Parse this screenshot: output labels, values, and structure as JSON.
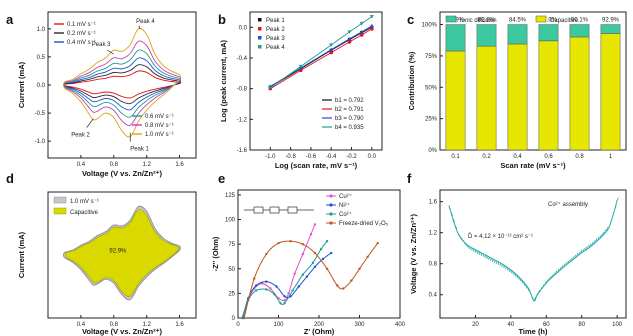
{
  "panel_labels": [
    "a",
    "b",
    "c",
    "d",
    "e",
    "f"
  ],
  "chart_data": [
    {
      "panel": "a",
      "type": "line",
      "xlabel": "Voltage (V vs. Zn/Zn²⁺)",
      "ylabel": "Current (mA)",
      "xlim": [
        0.0,
        1.8
      ],
      "ylim": [
        -1.3,
        1.3
      ],
      "xticks": [
        "0.4",
        "0.8",
        "1.2",
        "1.6"
      ],
      "yticks": [
        "-1.0",
        "-0.5",
        "0.0",
        "0.5",
        "1.0"
      ],
      "scale_factors": [
        0.25,
        0.36,
        0.48,
        0.62,
        0.78,
        1.0
      ],
      "series": [
        {
          "name": "0.1 mV s⁻¹",
          "color": "#e5121a"
        },
        {
          "name": "0.2 mV s⁻¹",
          "color": "#2a2a2a"
        },
        {
          "name": "0.4 mV s⁻¹",
          "color": "#1f4fd6"
        },
        {
          "name": "0.6 mV s⁻¹",
          "color": "#1e9e8f"
        },
        {
          "name": "0.8 mV s⁻¹",
          "color": "#c43fb5"
        },
        {
          "name": "1.0 mV s⁻¹",
          "color": "#d9a21a"
        }
      ],
      "peaks": [
        {
          "label": "Peak 1",
          "x": 1.0,
          "y": -0.85
        },
        {
          "label": "Peak 2",
          "x": 0.55,
          "y": -0.6
        },
        {
          "label": "Peak 3",
          "x": 0.8,
          "y": 0.55
        },
        {
          "label": "Peak 4",
          "x": 1.12,
          "y": 1.0
        }
      ],
      "curve_shape": {
        "anodic_x": [
          0.2,
          0.3,
          0.4,
          0.5,
          0.6,
          0.7,
          0.8,
          0.9,
          1.0,
          1.1,
          1.2,
          1.3,
          1.4,
          1.5,
          1.6
        ],
        "anodic_y": [
          0.05,
          0.1,
          0.2,
          0.28,
          0.4,
          0.48,
          0.62,
          0.6,
          0.72,
          1.0,
          0.9,
          0.55,
          0.35,
          0.25,
          0.18
        ],
        "cathodic_x": [
          1.6,
          1.5,
          1.4,
          1.3,
          1.2,
          1.1,
          1.0,
          0.9,
          0.8,
          0.7,
          0.6,
          0.55,
          0.5,
          0.4,
          0.3,
          0.2
        ],
        "cathodic_y": [
          0.1,
          -0.05,
          -0.18,
          -0.3,
          -0.45,
          -0.65,
          -0.92,
          -0.82,
          -0.58,
          -0.5,
          -0.6,
          -0.62,
          -0.52,
          -0.3,
          -0.15,
          -0.05
        ]
      }
    },
    {
      "panel": "b",
      "type": "scatter",
      "xlabel": "Log (scan rate, mV s⁻¹)",
      "ylabel": "Log (peak current, mA)",
      "xlim": [
        -1.2,
        0.1
      ],
      "ylim": [
        -1.6,
        0.2
      ],
      "xticks": [
        "-1.0",
        "-0.8",
        "-0.6",
        "-0.4",
        "-0.2",
        "0.0"
      ],
      "yticks": [
        "-1.6",
        "-1.2",
        "-0.8",
        "-0.4",
        "0.0"
      ],
      "x": [
        -1.0,
        -0.7,
        -0.4,
        -0.22,
        -0.1,
        0.0
      ],
      "series": [
        {
          "name": "Peak 1",
          "color": "#111111",
          "marker": "square",
          "values": [
            -0.78,
            -0.54,
            -0.3,
            -0.16,
            -0.07,
            0.0
          ]
        },
        {
          "name": "Peak 2",
          "color": "#e5121a",
          "marker": "circle",
          "values": [
            -0.8,
            -0.56,
            -0.33,
            -0.19,
            -0.1,
            -0.02
          ]
        },
        {
          "name": "Peak 3",
          "color": "#1f4fd6",
          "marker": "triangle",
          "values": [
            -0.77,
            -0.53,
            -0.29,
            -0.15,
            -0.06,
            0.02
          ]
        },
        {
          "name": "Peak 4",
          "color": "#1e9e8f",
          "marker": "triangle-down",
          "values": [
            -0.79,
            -0.51,
            -0.23,
            -0.06,
            0.05,
            0.14
          ]
        }
      ],
      "fit_labels": [
        "b1 = 0.792",
        "b2 = 0.791",
        "b3 = 0.790",
        "b4 = 0.935"
      ]
    },
    {
      "panel": "c",
      "type": "bar",
      "xlabel": "Scan rate (mV s⁻¹)",
      "ylabel": "Contribution (%)",
      "ylim": [
        0,
        110
      ],
      "yticks": [
        "0%",
        "25%",
        "50%",
        "75%",
        "100%"
      ],
      "categories": [
        "0.1",
        "0.2",
        "0.4",
        "0.6",
        "0.8",
        "1"
      ],
      "series": [
        {
          "name": "Capacitive",
          "color": "#e6e600",
          "values": [
            78.9,
            82.8,
            84.5,
            87.0,
            90.1,
            92.9
          ]
        },
        {
          "name": "Ionic diffusion",
          "color": "#3cc9a0",
          "values": [
            21.1,
            17.2,
            15.5,
            13.0,
            9.9,
            7.1
          ]
        }
      ],
      "bar_labels": [
        "78.9%",
        "82.8%",
        "84.5%",
        "87.0%",
        "90.1%",
        "92.9%"
      ]
    },
    {
      "panel": "d",
      "type": "area",
      "xlabel": "Voltage (V vs. Zn/Zn²⁺)",
      "ylabel": "Current (mA)",
      "xlim": [
        0.0,
        1.8
      ],
      "ylim": [
        -1.3,
        1.3
      ],
      "xticks": [
        "0.4",
        "0.8",
        "1.2",
        "1.6"
      ],
      "series": [
        {
          "name": "1.0 mV s⁻¹",
          "color": "#9aa0a6"
        },
        {
          "name": "Capacitive",
          "color": "#d4d400"
        }
      ],
      "annotation": "92.9%"
    },
    {
      "panel": "e",
      "type": "line",
      "xlabel": "Z' (Ohm)",
      "ylabel": "-Z'' (Ohm)",
      "xlim": [
        0,
        400
      ],
      "ylim": [
        0,
        130
      ],
      "xticks": [
        "0",
        "100",
        "200",
        "300",
        "400"
      ],
      "yticks": [
        "0",
        "25",
        "50",
        "75",
        "100",
        "125"
      ],
      "series": [
        {
          "name": "Cu²⁺",
          "color": "#e052c9",
          "marker": "circle",
          "x": [
            15,
            25,
            40,
            60,
            80,
            100,
            115,
            125,
            140,
            160,
            180,
            190
          ],
          "y": [
            0,
            18,
            30,
            35,
            30,
            20,
            18,
            25,
            45,
            65,
            85,
            95
          ]
        },
        {
          "name": "Ni²⁺",
          "color": "#1f4fd6",
          "marker": "circle",
          "x": [
            12,
            25,
            45,
            70,
            95,
            115,
            130,
            150,
            170,
            190,
            210,
            230
          ],
          "y": [
            0,
            20,
            33,
            37,
            32,
            22,
            22,
            32,
            42,
            52,
            60,
            66
          ]
        },
        {
          "name": "Co²⁺",
          "color": "#1e9e8f",
          "marker": "circle",
          "x": [
            10,
            25,
            45,
            70,
            90,
            105,
            115,
            135,
            160,
            185,
            205,
            220
          ],
          "y": [
            0,
            18,
            28,
            29,
            24,
            15,
            15,
            28,
            44,
            56,
            70,
            78
          ]
        },
        {
          "name": "Freeze-dried V₂O₅",
          "color": "#c2571a",
          "marker": "circle",
          "x": [
            15,
            40,
            70,
            100,
            130,
            160,
            190,
            220,
            245,
            260,
            280,
            300,
            320,
            345
          ],
          "y": [
            0,
            40,
            65,
            76,
            78,
            75,
            66,
            50,
            33,
            30,
            38,
            50,
            62,
            76
          ]
        }
      ]
    },
    {
      "panel": "f",
      "type": "line",
      "xlabel": "Time (h)",
      "ylabel": "Voltage (V vs. Zn/Zn²⁺)",
      "xlim": [
        0,
        105
      ],
      "ylim": [
        0.1,
        1.75
      ],
      "xticks": [
        "20",
        "40",
        "60",
        "80",
        "100"
      ],
      "yticks": [
        "0.4",
        "0.8",
        "1.2",
        "1.6"
      ],
      "title": "Co²⁺ assembly",
      "formula": "D̄ = 4.12 × 10⁻¹² cm² s⁻¹",
      "color": "#1ea5a0",
      "x": [
        5,
        10,
        15,
        20,
        25,
        30,
        35,
        40,
        45,
        50,
        53,
        55,
        60,
        65,
        70,
        75,
        80,
        85,
        90,
        95,
        98,
        100
      ],
      "y": [
        1.55,
        1.2,
        1.05,
        0.98,
        0.92,
        0.86,
        0.8,
        0.72,
        0.62,
        0.48,
        0.32,
        0.4,
        0.55,
        0.66,
        0.76,
        0.85,
        0.94,
        1.02,
        1.12,
        1.25,
        1.45,
        1.62
      ]
    }
  ]
}
